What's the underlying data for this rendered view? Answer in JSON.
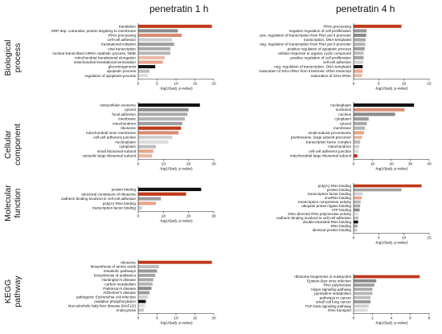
{
  "column_titles": [
    "penetratin 1 h",
    "penetratin 4 h"
  ],
  "row_titles": [
    [
      "Biological",
      "process"
    ],
    [
      "Cellular",
      "component"
    ],
    [
      "Molecular",
      "function"
    ],
    [
      "KEGG",
      "pathway"
    ]
  ],
  "chart_data": [
    {
      "type": "bar",
      "orientation": "horizontal",
      "panel": "biological-process-1h",
      "xlabel": "-log10(adj. p-value)",
      "xlim": [
        0,
        20
      ],
      "xticks": [
        0,
        5,
        10,
        15,
        20
      ],
      "categories": [
        "translation",
        "SRP-dep. cotranslat. protein targeting to membrane",
        "rRNA processing",
        "cell-cell adhesion",
        "translational initiation",
        "viral transcription",
        "nuclear-transcribed mRNA catabolic process, NMD",
        "mitochondrial translational elongation",
        "mitochondrial translational termination",
        "gluconeogenesis",
        "apoptotic process",
        "regulation of apoptosis process"
      ],
      "values": [
        19.5,
        10.5,
        11.5,
        9.0,
        9.5,
        8.5,
        8.5,
        7.0,
        6.5,
        4.5,
        3.0,
        2.5
      ],
      "colors": [
        "#c0391b",
        "#8c8c8c",
        "#d98c73",
        "#cfcfcf",
        "#9e9e9e",
        "#aaaaaa",
        "#b5b5b5",
        "#e9b9a7",
        "#e8a58c",
        "#111111",
        "#bdbdbd",
        "#dcdcdc"
      ]
    },
    {
      "type": "bar",
      "orientation": "horizontal",
      "panel": "biological-process-4h",
      "xlabel": "-log10(adj. p-value)",
      "xlim": [
        0,
        15
      ],
      "xticks": [
        0,
        5,
        10,
        15
      ],
      "categories": [
        "rRNA processing",
        "negative regulation of cell proliferation",
        "pos. regulation of transcription from RNA pol II promoter",
        "transcription, DNA-templated",
        "neg. regulation of transcription from RNA pol II promoter",
        "positive regulation of apoptotic process",
        "cellular response to organic cyclic compound",
        "positive regulation of cell proliferation",
        "cell-cell adhesion",
        "neg. regulation of transcription, DNA-templated",
        "maturation of SSU-rRNA from tricistronic rRNA transcript",
        "maturation of SSU-rRNA"
      ],
      "values": [
        9.5,
        2.6,
        2.5,
        2.4,
        2.3,
        2.2,
        2.0,
        2.0,
        1.9,
        1.8,
        1.8,
        1.7
      ],
      "colors": [
        "#c0391b",
        "#999999",
        "#8c8c8c",
        "#aaaaaa",
        "#b5b5b5",
        "#9e9e9e",
        "#bdbdbd",
        "#a5a5a5",
        "#cfcfcf",
        "#111111",
        "#e8a58c",
        "#e9b9a7"
      ]
    },
    {
      "type": "bar",
      "orientation": "horizontal",
      "panel": "cellular-component-1h",
      "xlabel": "-log10(adj. p-value)",
      "xlim": [
        0,
        30
      ],
      "xticks": [
        0,
        10,
        20,
        30
      ],
      "categories": [
        "extracellular exosome",
        "cytosol",
        "focal adhesion",
        "membrane",
        "mitochondrion",
        "ribosome",
        "mitochondrial inner membrane",
        "cell-cell adherens junction",
        "nucleoplasm",
        "cytoplasm",
        "small ribosomal subunit",
        "cytosolic large ribosomal subunit"
      ],
      "values": [
        24.5,
        20.0,
        19.5,
        18.5,
        17.5,
        17.0,
        16.0,
        13.5,
        12.0,
        7.0,
        6.0,
        5.5
      ],
      "colors": [
        "#111111",
        "#8c8c8c",
        "#aaaaaa",
        "#b5b5b5",
        "#9e9e9e",
        "#c0391b",
        "#d98c73",
        "#cfcfcf",
        "#dcdcdc",
        "#bdbdbd",
        "#e8a58c",
        "#e9b9a7"
      ]
    },
    {
      "type": "bar",
      "orientation": "horizontal",
      "panel": "cellular-component-4h",
      "xlabel": "-log10(adj. p-value)",
      "xlim": [
        0,
        40
      ],
      "xticks": [
        0,
        10,
        20,
        30,
        40
      ],
      "categories": [
        "nucleoplasm",
        "nucleolus",
        "nucleus",
        "cytoplasm",
        "cytosol",
        "membrane",
        "small-subunit processome",
        "preribosome, large subunit precursor",
        "transcription factor complex",
        "mitochondrion",
        "cell-cell adherens junction",
        "mitochondrial large ribosomal subunit"
      ],
      "values": [
        32.0,
        27.0,
        22.0,
        8.0,
        7.0,
        6.0,
        5.5,
        4.5,
        3.5,
        3.0,
        2.5,
        2.0
      ],
      "colors": [
        "#111111",
        "#d98c73",
        "#8c8c8c",
        "#9e9e9e",
        "#aaaaaa",
        "#b5b5b5",
        "#e8a58c",
        "#e9b9a7",
        "#bdbdbd",
        "#cfcfcf",
        "#dcdcdc",
        "#c0391b"
      ]
    },
    {
      "type": "bar",
      "orientation": "horizontal",
      "panel": "molecular-function-1h",
      "xlabel": "-log10(adj. p-value)",
      "xlim": [
        0,
        30
      ],
      "xticks": [
        0,
        10,
        20,
        30
      ],
      "categories": [
        "protein binding",
        "structural constituent of ribosome",
        "cadherin binding involved in cell-cell adhesion",
        "poly(A) RNA binding",
        "transcription factor binding"
      ],
      "values": [
        25.0,
        19.0,
        9.0,
        7.0,
        1.5
      ],
      "colors": [
        "#111111",
        "#c0391b",
        "#9e9e9e",
        "#e8a58c",
        "#cfcfcf"
      ]
    },
    {
      "type": "bar",
      "orientation": "horizontal",
      "panel": "molecular-function-4h",
      "xlabel": "-log10(adj. p-value)",
      "xlim": [
        0,
        15
      ],
      "xticks": [
        0,
        5,
        10,
        15
      ],
      "categories": [
        "poly(A) RNA binding",
        "protein binding",
        "transcription factor binding",
        "snoRNA binding",
        "transcription corepressor activity",
        "ubiquitin protein ligase binding",
        "ATP binding",
        "DNA-directed RNA polymerase activity",
        "cadherin binding involved in cell-cell adhesion",
        "double-stranded RNA binding",
        "DNA binding",
        "identical protein binding"
      ],
      "values": [
        13.5,
        9.5,
        1.8,
        1.6,
        1.4,
        1.3,
        1.2,
        1.0,
        1.0,
        0.9,
        0.8,
        0.7
      ],
      "colors": [
        "#c0391b",
        "#9e9e9e",
        "#cfcfcf",
        "#e8a58c",
        "#b5b5b5",
        "#aaaaaa",
        "#8c8c8c",
        "#dcdcdc",
        "#bdbdbd",
        "#111111",
        "#a5a5a5",
        "#c7c7c7"
      ]
    },
    {
      "type": "bar",
      "orientation": "horizontal",
      "panel": "kegg-pathway-1h",
      "xlabel": "-log10(adj. p-value)",
      "xlim": [
        0,
        20
      ],
      "xticks": [
        0,
        5,
        10,
        15,
        20
      ],
      "categories": [
        "ribosome",
        "biosynthesis of amino acids",
        "metabolic pathways",
        "biosynthesis of antibiotics",
        "Huntington's disease",
        "carbon metabolism",
        "Parkinson's disease",
        "Alzheimer's disease",
        "pathogenic Escherichia coli infection",
        "oxidative phosphorylation",
        "Non-alcoholic fatty liver disease (NAFLD)",
        "endocytosis"
      ],
      "values": [
        19.5,
        5.5,
        5.0,
        4.5,
        4.0,
        3.8,
        3.5,
        3.0,
        2.5,
        2.0,
        1.8,
        1.5
      ],
      "colors": [
        "#c0391b",
        "#bdbdbd",
        "#999999",
        "#a5a5a5",
        "#aaaaaa",
        "#b5b5b5",
        "#8c8c8c",
        "#9e9e9e",
        "#cfcfcf",
        "#111111",
        "#dcdcdc",
        "#c7c7c7"
      ]
    },
    {
      "type": "bar",
      "orientation": "horizontal",
      "panel": "kegg-pathway-4h",
      "xlabel": "-log10(adj. p-value)",
      "xlim": [
        0,
        8
      ],
      "xticks": [
        0,
        2,
        4,
        6,
        8
      ],
      "categories": [
        "ribosome biogenesis in eukaryotes",
        "Epstein-Barr virus infection",
        "RNA polymerase",
        "Hippo signaling pathway",
        "pyrimidine metabolism",
        "pathways in cancer",
        "small cell lung cancer",
        "TGF-beta signaling pathway",
        "RNA transport"
      ],
      "values": [
        7.0,
        2.4,
        2.2,
        2.0,
        2.0,
        1.8,
        1.8,
        1.6,
        1.5
      ],
      "colors": [
        "#c0391b",
        "#8c8c8c",
        "#9e9e9e",
        "#aaaaaa",
        "#b5b5b5",
        "#bdbdbd",
        "#999999",
        "#cfcfcf",
        "#dcdcdc"
      ]
    }
  ]
}
